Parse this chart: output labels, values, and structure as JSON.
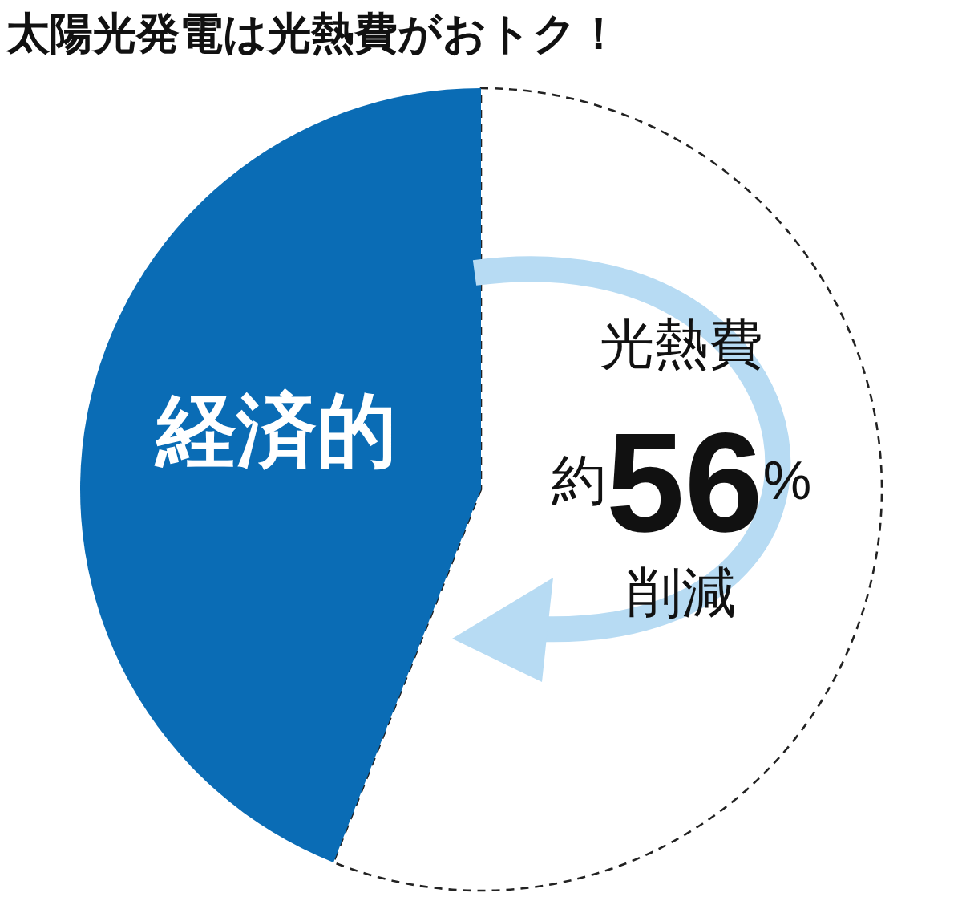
{
  "chart_data": {
    "type": "pie",
    "title": "太陽光発電は光熱費がおトク！",
    "categories": [
      "経済的",
      null
    ],
    "values": [
      44,
      56
    ],
    "colors": [
      "#0a6cb5",
      "#ffffff"
    ],
    "annotations": [
      "光熱費",
      "約56%",
      "削減"
    ]
  }
}
